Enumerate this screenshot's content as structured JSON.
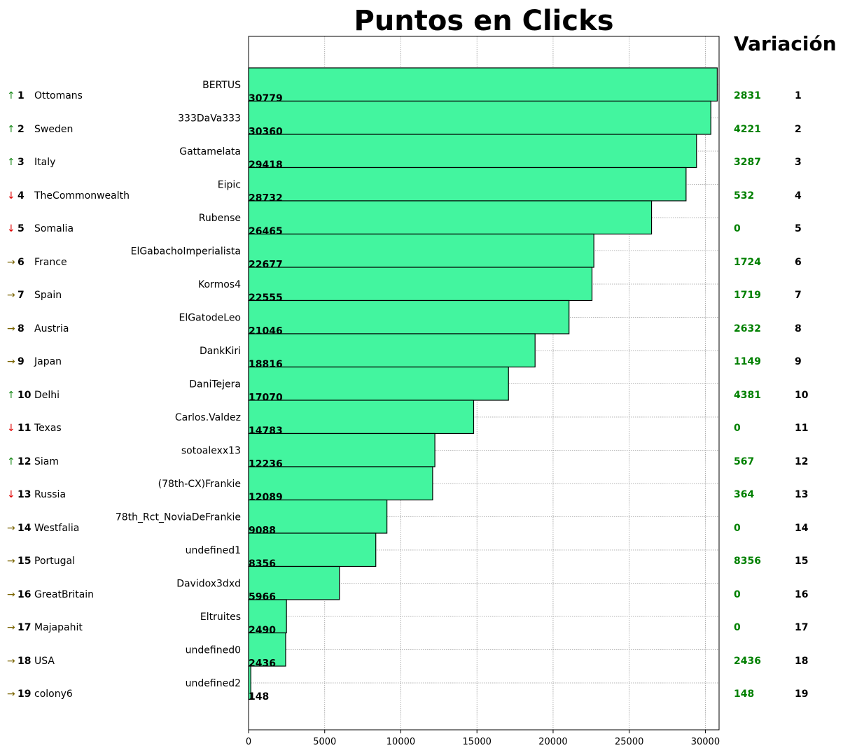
{
  "title": "Puntos en Clicks",
  "variation_title": "Variación",
  "colors": {
    "bar_fill": "#43f59f",
    "bar_edge": "#000000",
    "up": "#1a8a1a",
    "down": "#e00000",
    "same": "#7a6400",
    "variation": "#008000",
    "grid": "#9a9a9a"
  },
  "arrows": {
    "up": "↑",
    "down": "↓",
    "same": "→"
  },
  "chart_data": {
    "type": "bar",
    "orientation": "horizontal",
    "title": "Puntos en Clicks",
    "xlim": [
      0,
      30900
    ],
    "x_ticks": [
      0,
      5000,
      10000,
      15000,
      20000,
      25000,
      30000
    ],
    "grid": true,
    "categories": [
      "BERTUS",
      "333DaVa333",
      "Gattamelata",
      "Eipic",
      "Rubense",
      "ElGabachoImperialista",
      "Kormos4",
      "ElGatodeLeo",
      "DankKiri",
      "DaniTejera",
      "Carlos.Valdez",
      "sotoalexx13",
      "(78th-CX)Frankie",
      "78th_Rct_NoviaDeFrankie",
      "undefined1",
      "Davidox3dxd",
      "Eltruites",
      "undefined0",
      "undefined2"
    ],
    "values": [
      30779,
      30360,
      29418,
      28732,
      26465,
      22677,
      22555,
      21046,
      18816,
      17070,
      14783,
      12236,
      12089,
      9088,
      8356,
      5966,
      2490,
      2436,
      148
    ]
  },
  "rows": [
    {
      "trend": "up",
      "rank": "1",
      "nation": "Ottomans",
      "variation": "2831",
      "rank_right": "1"
    },
    {
      "trend": "up",
      "rank": "2",
      "nation": "Sweden",
      "variation": "4221",
      "rank_right": "2"
    },
    {
      "trend": "up",
      "rank": "3",
      "nation": "Italy",
      "variation": "3287",
      "rank_right": "3"
    },
    {
      "trend": "down",
      "rank": "4",
      "nation": "TheCommonwealth",
      "variation": "532",
      "rank_right": "4"
    },
    {
      "trend": "down",
      "rank": "5",
      "nation": "Somalia",
      "variation": "0",
      "rank_right": "5"
    },
    {
      "trend": "same",
      "rank": "6",
      "nation": "France",
      "variation": "1724",
      "rank_right": "6"
    },
    {
      "trend": "same",
      "rank": "7",
      "nation": "Spain",
      "variation": "1719",
      "rank_right": "7"
    },
    {
      "trend": "same",
      "rank": "8",
      "nation": "Austria",
      "variation": "2632",
      "rank_right": "8"
    },
    {
      "trend": "same",
      "rank": "9",
      "nation": "Japan",
      "variation": "1149",
      "rank_right": "9"
    },
    {
      "trend": "up",
      "rank": "10",
      "nation": "Delhi",
      "variation": "4381",
      "rank_right": "10"
    },
    {
      "trend": "down",
      "rank": "11",
      "nation": "Texas",
      "variation": "0",
      "rank_right": "11"
    },
    {
      "trend": "up",
      "rank": "12",
      "nation": "Siam",
      "variation": "567",
      "rank_right": "12"
    },
    {
      "trend": "down",
      "rank": "13",
      "nation": "Russia",
      "variation": "364",
      "rank_right": "13"
    },
    {
      "trend": "same",
      "rank": "14",
      "nation": "Westfalia",
      "variation": "0",
      "rank_right": "14"
    },
    {
      "trend": "same",
      "rank": "15",
      "nation": "Portugal",
      "variation": "8356",
      "rank_right": "15"
    },
    {
      "trend": "same",
      "rank": "16",
      "nation": "GreatBritain",
      "variation": "0",
      "rank_right": "16"
    },
    {
      "trend": "same",
      "rank": "17",
      "nation": "Majapahit",
      "variation": "0",
      "rank_right": "17"
    },
    {
      "trend": "same",
      "rank": "18",
      "nation": "USA",
      "variation": "2436",
      "rank_right": "18"
    },
    {
      "trend": "same",
      "rank": "19",
      "nation": "colony6",
      "variation": "148",
      "rank_right": "19"
    }
  ]
}
